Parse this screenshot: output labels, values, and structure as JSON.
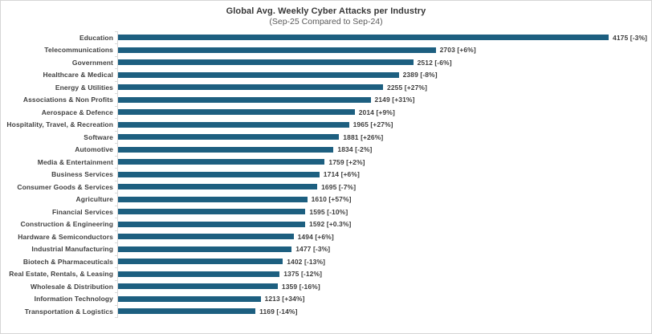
{
  "chart_data": {
    "type": "bar",
    "orientation": "horizontal",
    "title": "Global Avg. Weekly Cyber Attacks per Industry",
    "subtitle": "(Sep-25 Compared to Sep-24)",
    "xlabel": "",
    "ylabel": "",
    "xlim": [
      0,
      4300
    ],
    "grid": false,
    "legend": false,
    "bar_color": "#1d5f80",
    "axis_color": "#d9d9d9",
    "categories": [
      "Education",
      "Telecommunications",
      "Government",
      "Healthcare & Medical",
      "Energy & Utilities",
      "Associations & Non Profits",
      "Aerospace & Defence",
      "Hospitality, Travel, & Recreation",
      "Software",
      "Automotive",
      "Media & Entertainment",
      "Business Services",
      "Consumer Goods & Services",
      "Agriculture",
      "Financial Services",
      "Construction & Engineering",
      "Hardware & Semiconductors",
      "Industrial Manufacturing",
      "Biotech & Pharmaceuticals",
      "Real Estate, Rentals, & Leasing",
      "Wholesale & Distribution",
      "Information Technology",
      "Transportation & Logistics"
    ],
    "values": [
      4175,
      2703,
      2512,
      2389,
      2255,
      2149,
      2014,
      1965,
      1881,
      1834,
      1759,
      1714,
      1695,
      1610,
      1595,
      1592,
      1494,
      1477,
      1402,
      1375,
      1359,
      1213,
      1169
    ],
    "changes": [
      "-3%",
      "+6%",
      "-6%",
      "-8%",
      "+27%",
      "+31%",
      "+9%",
      "+27%",
      "+26%",
      "-2%",
      "+2%",
      "+6%",
      "-7%",
      "+57%",
      "-10%",
      "+0.3%",
      "+6%",
      "-3%",
      "-13%",
      "-12%",
      "-16%",
      "+34%",
      "-14%"
    ],
    "value_labels": [
      "4175 [-3%]",
      "2703 [+6%]",
      "2512 [-6%]",
      "2389 [-8%]",
      "2255 [+27%]",
      "2149 [+31%]",
      "2014 [+9%]",
      "1965 [+27%]",
      "1881 [+26%]",
      "1834 [-2%]",
      "1759 [+2%]",
      "1714 [+6%]",
      "1695 [-7%]",
      "1610 [+57%]",
      "1595 [-10%]",
      "1592 [+0.3%]",
      "1494 [+6%]",
      "1477 [-3%]",
      "1402 [-13%]",
      "1375 [-12%]",
      "1359 [-16%]",
      "1213 [+34%]",
      "1169 [-14%]"
    ]
  }
}
